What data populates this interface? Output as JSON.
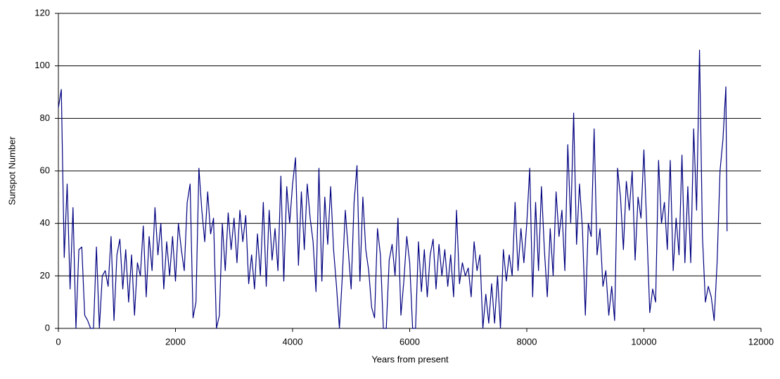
{
  "chart_data": {
    "type": "line",
    "x_label": "Years from present",
    "y_label": "Sunspot Number",
    "x": [
      0,
      50,
      100,
      150,
      200,
      250,
      300,
      350,
      400,
      450,
      500,
      550,
      600,
      650,
      700,
      750,
      800,
      850,
      900,
      950,
      1000,
      1050,
      1100,
      1150,
      1200,
      1250,
      1300,
      1350,
      1400,
      1450,
      1500,
      1550,
      1600,
      1650,
      1700,
      1750,
      1800,
      1850,
      1900,
      1950,
      2000,
      2050,
      2100,
      2150,
      2200,
      2250,
      2300,
      2350,
      2400,
      2450,
      2500,
      2550,
      2600,
      2650,
      2700,
      2750,
      2800,
      2850,
      2900,
      2950,
      3000,
      3050,
      3100,
      3150,
      3200,
      3250,
      3300,
      3350,
      3400,
      3450,
      3500,
      3550,
      3600,
      3650,
      3700,
      3750,
      3800,
      3850,
      3900,
      3950,
      4000,
      4050,
      4100,
      4150,
      4200,
      4250,
      4300,
      4350,
      4400,
      4450,
      4500,
      4550,
      4600,
      4650,
      4700,
      4750,
      4800,
      4850,
      4900,
      4950,
      5000,
      5050,
      5100,
      5150,
      5200,
      5250,
      5300,
      5350,
      5400,
      5450,
      5500,
      5550,
      5600,
      5650,
      5700,
      5750,
      5800,
      5850,
      5900,
      5950,
      6000,
      6050,
      6100,
      6150,
      6200,
      6250,
      6300,
      6350,
      6400,
      6450,
      6500,
      6550,
      6600,
      6650,
      6700,
      6750,
      6800,
      6850,
      6900,
      6950,
      7000,
      7050,
      7100,
      7150,
      7200,
      7250,
      7300,
      7350,
      7400,
      7450,
      7500,
      7550,
      7600,
      7650,
      7700,
      7750,
      7800,
      7850,
      7900,
      7950,
      8000,
      8050,
      8100,
      8150,
      8200,
      8250,
      8300,
      8350,
      8400,
      8450,
      8500,
      8550,
      8600,
      8650,
      8700,
      8750,
      8800,
      8850,
      8900,
      8950,
      9000,
      9050,
      9100,
      9150,
      9200,
      9250,
      9300,
      9350,
      9400,
      9450,
      9500,
      9550,
      9600,
      9650,
      9700,
      9750,
      9800,
      9850,
      9900,
      9950,
      10000,
      10050,
      10100,
      10150,
      10200,
      10250,
      10300,
      10350,
      10400,
      10450,
      10500,
      10550,
      10600,
      10650,
      10700,
      10750,
      10800,
      10850,
      10900,
      10950,
      11000,
      11050,
      11100,
      11150,
      11200,
      11250,
      11300,
      11350,
      11400,
      11420
    ],
    "series": [
      {
        "name": "Sunspot Number",
        "color": "#000080",
        "values": [
          84,
          91,
          27,
          55,
          15,
          46,
          0,
          30,
          31,
          5,
          3,
          0,
          0,
          31,
          0,
          20,
          22,
          16,
          35,
          3,
          28,
          34,
          15,
          30,
          10,
          28,
          5,
          25,
          20,
          39,
          12,
          35,
          22,
          46,
          28,
          40,
          15,
          33,
          20,
          35,
          18,
          40,
          30,
          22,
          48,
          55,
          4,
          10,
          61,
          45,
          33,
          52,
          36,
          42,
          0,
          5,
          40,
          22,
          44,
          30,
          42,
          25,
          45,
          33,
          43,
          17,
          28,
          15,
          36,
          20,
          48,
          16,
          45,
          26,
          38,
          22,
          58,
          18,
          54,
          40,
          55,
          65,
          24,
          52,
          30,
          55,
          42,
          33,
          14,
          61,
          18,
          50,
          32,
          54,
          30,
          16,
          0,
          20,
          45,
          30,
          15,
          48,
          62,
          18,
          50,
          30,
          22,
          8,
          4,
          38,
          28,
          0,
          0,
          26,
          32,
          20,
          42,
          5,
          18,
          35,
          25,
          0,
          0,
          33,
          14,
          30,
          12,
          28,
          34,
          15,
          32,
          20,
          30,
          16,
          28,
          12,
          45,
          17,
          25,
          20,
          23,
          12,
          33,
          22,
          28,
          0,
          13,
          2,
          17,
          2,
          20,
          0,
          30,
          18,
          28,
          20,
          48,
          22,
          38,
          25,
          40,
          61,
          12,
          48,
          22,
          54,
          30,
          12,
          38,
          20,
          52,
          35,
          45,
          22,
          70,
          40,
          82,
          32,
          55,
          38,
          5,
          40,
          35,
          76,
          28,
          38,
          16,
          22,
          5,
          16,
          3,
          61,
          50,
          30,
          56,
          45,
          60,
          26,
          50,
          42,
          68,
          38,
          6,
          15,
          10,
          64,
          40,
          48,
          30,
          64,
          22,
          42,
          28,
          66,
          25,
          54,
          25,
          76,
          45,
          106,
          35,
          10,
          16,
          12,
          3,
          25,
          60,
          72,
          92,
          37
        ]
      }
    ],
    "xlim": [
      0,
      12000
    ],
    "xticks": [
      0,
      2000,
      4000,
      6000,
      8000,
      10000,
      12000
    ],
    "ylim": [
      0,
      120
    ],
    "yticks": [
      0,
      20,
      40,
      60,
      80,
      100,
      120
    ],
    "grid": true
  }
}
